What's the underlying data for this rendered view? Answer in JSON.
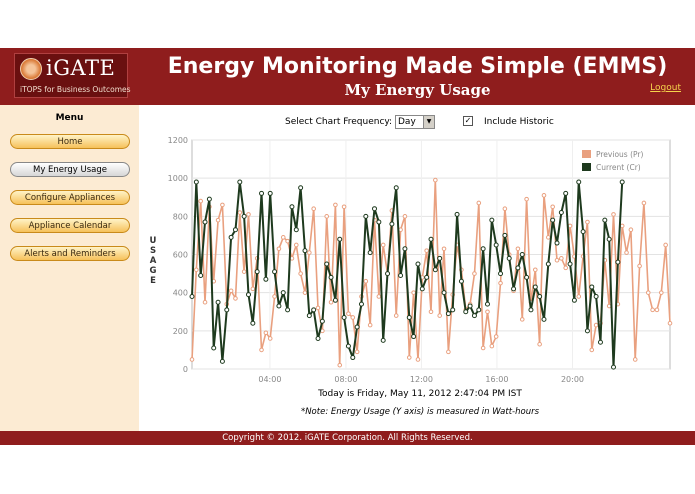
{
  "header": {
    "logo_text": "iGATE",
    "logo_tagline": "iTOPS for Business Outcomes",
    "app_title": "Energy Monitoring Made Simple (EMMS)",
    "page_title": "My Energy Usage",
    "logout_label": "Logout"
  },
  "sidebar": {
    "title": "Menu",
    "items": [
      {
        "label": "Home",
        "active": false
      },
      {
        "label": "My Energy Usage",
        "active": true
      },
      {
        "label": "Configure Appliances",
        "active": false
      },
      {
        "label": "Appliance Calendar",
        "active": false
      },
      {
        "label": "Alerts and Reminders",
        "active": false
      }
    ]
  },
  "controls": {
    "frequency_label": "Select Chart Frequency:",
    "frequency_value": "Day",
    "include_historic_label": "Include Historic",
    "include_historic_checked": true
  },
  "chart_data": {
    "type": "line",
    "ylabel": "USAGE",
    "ylim": [
      0,
      1200
    ],
    "yticks": [
      "0",
      "200",
      "400",
      "600",
      "800",
      "1000",
      "1200"
    ],
    "xticks": [
      "04:00",
      "08:00",
      "12:00",
      "16:00",
      "20:00"
    ],
    "legend_position": "top-right",
    "series": [
      {
        "name": "Previous (Pr)",
        "color": "#e9a07f",
        "values": [
          50,
          520,
          880,
          350,
          850,
          460,
          780,
          860,
          340,
          410,
          370,
          820,
          510,
          810,
          420,
          580,
          100,
          190,
          160,
          380,
          630,
          690,
          670,
          580,
          650,
          500,
          400,
          610,
          840,
          320,
          200,
          800,
          350,
          860,
          20,
          850,
          290,
          270,
          90,
          380,
          460,
          230,
          780,
          380,
          650,
          500,
          830,
          280,
          730,
          800,
          60,
          400,
          50,
          480,
          620,
          300,
          990,
          280,
          630,
          90,
          390,
          650,
          520,
          310,
          340,
          500,
          870,
          110,
          300,
          120,
          170,
          450,
          840,
          600,
          410,
          630,
          260,
          890,
          350,
          520,
          130,
          910,
          690,
          850,
          570,
          580,
          530,
          750,
          590,
          380,
          590,
          770,
          100,
          230,
          240,
          570,
          330,
          810,
          340,
          750,
          610,
          730,
          50,
          540,
          870,
          400,
          310,
          310,
          400,
          650,
          240
        ]
      },
      {
        "name": "Current (Cr)",
        "color": "#1e3a1e",
        "values": [
          380,
          980,
          490,
          770,
          890,
          110,
          350,
          40,
          310,
          690,
          730,
          980,
          800,
          390,
          240,
          510,
          920,
          470,
          920,
          510,
          330,
          400,
          310,
          850,
          730,
          950,
          620,
          280,
          310,
          160,
          250,
          550,
          480,
          360,
          680,
          270,
          120,
          60,
          220,
          340,
          800,
          610,
          840,
          770,
          150,
          500,
          760,
          950,
          490,
          630,
          270,
          170,
          550,
          420,
          480,
          680,
          520,
          580,
          400,
          290,
          310,
          810,
          460,
          300,
          330,
          280,
          310,
          630,
          340,
          780,
          650,
          500,
          700,
          580,
          420,
          530,
          600,
          480,
          310,
          430,
          380,
          260,
          550,
          780,
          660,
          820,
          920,
          550,
          360,
          980,
          720,
          200,
          430,
          380,
          140,
          780,
          680,
          10,
          560,
          980
        ]
      }
    ]
  },
  "footer": {
    "date_text": "Today is Friday, May 11, 2012 2:47:04 PM IST",
    "note_text": "*Note: Energy Usage (Y axis) is measured in Watt-hours",
    "copyright": "Copyright © 2012. iGATE Corporation. All Rights Reserved."
  }
}
